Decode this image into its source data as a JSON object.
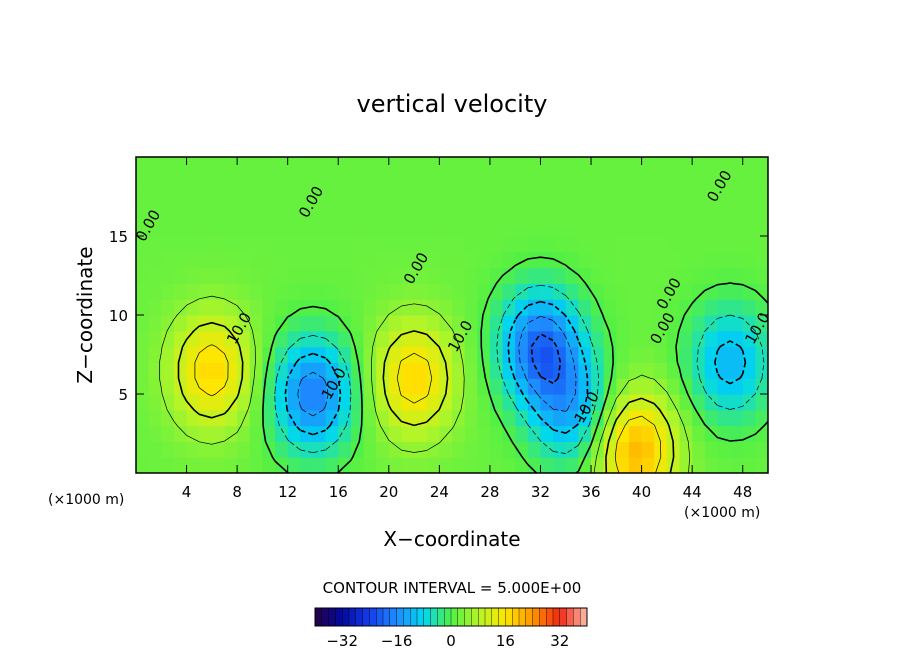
{
  "chart_data": {
    "type": "heatmap",
    "title": "vertical velocity",
    "xlabel": "X−coordinate",
    "ylabel": "Z−coordinate",
    "x_unit": "(×1000 m)",
    "x_ticks": [
      4,
      8,
      12,
      16,
      20,
      24,
      28,
      32,
      36,
      40,
      44,
      48
    ],
    "y_ticks": [
      5,
      10,
      15
    ],
    "xlim": [
      0,
      50
    ],
    "ylim": [
      0,
      20
    ],
    "contour_interval_text": "CONTOUR INTERVAL = 5.000E+00",
    "contour_interval": 5.0,
    "contour_labels": [
      {
        "text": "0.00",
        "x": 1.3,
        "y": 15.5
      },
      {
        "text": "0.00",
        "x": 14.2,
        "y": 17.0
      },
      {
        "text": "0.00",
        "x": 22.5,
        "y": 12.8
      },
      {
        "text": "0.00",
        "x": 46.5,
        "y": 18.0
      },
      {
        "text": "0.00",
        "x": 42.5,
        "y": 11.2
      },
      {
        "text": "0.00",
        "x": 42.0,
        "y": 9.0
      },
      {
        "text": "10.0",
        "x": 8.5,
        "y": 9.0
      },
      {
        "text": "10.0",
        "x": 16.0,
        "y": 5.5
      },
      {
        "text": "10.0",
        "x": 26.0,
        "y": 8.5
      },
      {
        "text": "10.0",
        "x": 36.0,
        "y": 4.0
      },
      {
        "text": "10.0",
        "x": 49.5,
        "y": 9.0
      }
    ],
    "field_features": [
      {
        "sign": "up",
        "x": 6.0,
        "y": 6.5,
        "peak": 16
      },
      {
        "sign": "down",
        "x": 14.0,
        "y": 5.0,
        "peak": -20
      },
      {
        "sign": "up",
        "x": 22.0,
        "y": 6.0,
        "peak": 16
      },
      {
        "sign": "down",
        "x": 32.0,
        "y": 8.0,
        "peak": -22
      },
      {
        "sign": "down",
        "x": 34.5,
        "y": 4.0,
        "peak": -14
      },
      {
        "sign": "up",
        "x": 39.5,
        "y": 1.5,
        "peak": 20
      },
      {
        "sign": "down",
        "x": 47.0,
        "y": 7.0,
        "peak": -14
      }
    ],
    "colorbar": {
      "min": -40,
      "max": 40,
      "ticks": [
        -32,
        -16,
        0,
        16,
        32
      ],
      "tick_labels": [
        "−32",
        "−16",
        "0",
        "16",
        "32"
      ]
    },
    "grid": false
  }
}
